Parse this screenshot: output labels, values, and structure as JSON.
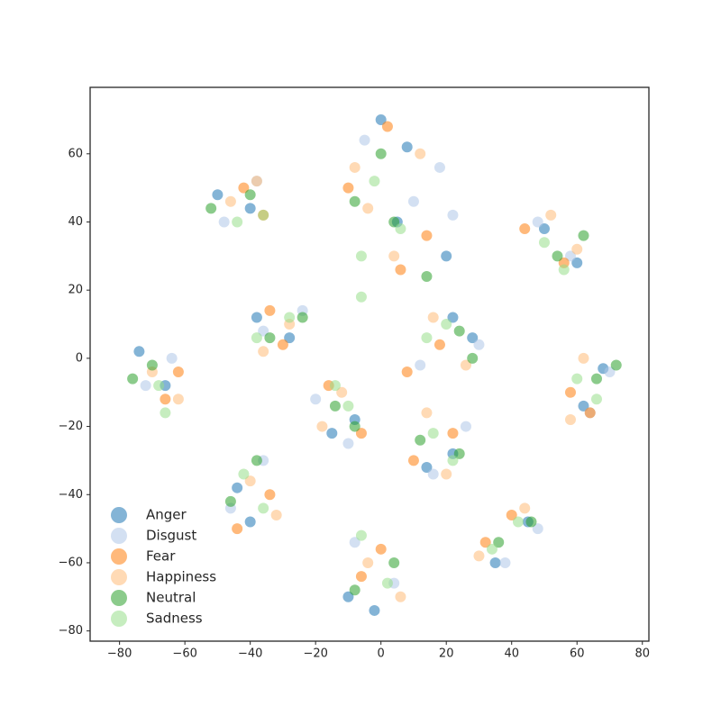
{
  "chart_data": {
    "type": "scatter",
    "xlim": [
      -89,
      82
    ],
    "ylim": [
      -83,
      79.5
    ],
    "xticks": [
      {
        "value": -80,
        "label": "−80"
      },
      {
        "value": -60,
        "label": "−60"
      },
      {
        "value": -40,
        "label": "−40"
      },
      {
        "value": -20,
        "label": "−20"
      },
      0,
      20,
      40,
      60,
      80
    ],
    "yticks": [
      {
        "value": -80,
        "label": "−80"
      },
      {
        "value": -60,
        "label": "−60"
      },
      {
        "value": -40,
        "label": "−40"
      },
      {
        "value": -20,
        "label": "−20"
      },
      0,
      20,
      40,
      60
    ],
    "grid": false,
    "legend": "lower left",
    "series": [
      {
        "name": "Anger",
        "color": "#1f77b4",
        "x": [
          -50,
          -40,
          0,
          8,
          5,
          20,
          60,
          50,
          -38,
          -28,
          28,
          22,
          -74,
          -66,
          68,
          62,
          -15,
          -8,
          22,
          14,
          -40,
          -44,
          45,
          35,
          -2,
          -10
        ],
        "values": [
          48,
          44,
          70,
          62,
          40,
          30,
          28,
          38,
          12,
          6,
          6,
          12,
          2,
          -8,
          -3,
          -14,
          -22,
          -18,
          -28,
          -32,
          -48,
          -38,
          -48,
          -60,
          -74,
          -70
        ]
      },
      {
        "name": "Disgust",
        "color": "#aec7e8",
        "x": [
          -38,
          -48,
          -5,
          18,
          22,
          10,
          48,
          58,
          -36,
          -24,
          12,
          30,
          -72,
          -64,
          64,
          70,
          -20,
          -10,
          26,
          16,
          -46,
          -36,
          38,
          48,
          -8,
          4
        ],
        "values": [
          52,
          40,
          64,
          56,
          42,
          46,
          40,
          30,
          8,
          14,
          -2,
          4,
          -8,
          0,
          -16,
          -4,
          -12,
          -25,
          -20,
          -34,
          -44,
          -30,
          -60,
          -50,
          -54,
          -66
        ]
      },
      {
        "name": "Fear",
        "color": "#ff7f0e",
        "x": [
          -42,
          -36,
          2,
          -10,
          6,
          14,
          44,
          56,
          -30,
          -34,
          18,
          8,
          -66,
          -62,
          58,
          64,
          -16,
          -6,
          10,
          22,
          -44,
          -34,
          32,
          40,
          0,
          -6
        ],
        "values": [
          50,
          42,
          68,
          50,
          26,
          36,
          38,
          28,
          4,
          14,
          4,
          -4,
          -12,
          -4,
          -10,
          -16,
          -8,
          -22,
          -30,
          -22,
          -50,
          -40,
          -54,
          -46,
          -56,
          -64
        ]
      },
      {
        "name": "Happiness",
        "color": "#ffbb78",
        "x": [
          -46,
          -38,
          -8,
          12,
          4,
          -4,
          52,
          60,
          -28,
          -36,
          16,
          26,
          -70,
          -62,
          62,
          58,
          -12,
          -18,
          14,
          20,
          -40,
          -32,
          30,
          44,
          -4,
          6
        ],
        "values": [
          46,
          52,
          56,
          60,
          30,
          44,
          42,
          32,
          10,
          2,
          12,
          -2,
          -4,
          -12,
          0,
          -18,
          -10,
          -20,
          -16,
          -34,
          -36,
          -46,
          -58,
          -44,
          -60,
          -70
        ]
      },
      {
        "name": "Neutral",
        "color": "#2ca02c",
        "x": [
          -52,
          -40,
          0,
          -8,
          4,
          14,
          54,
          62,
          -34,
          -24,
          24,
          28,
          -76,
          -70,
          66,
          72,
          -8,
          -14,
          12,
          24,
          -38,
          -46,
          46,
          36,
          -8,
          4
        ],
        "values": [
          44,
          48,
          60,
          46,
          40,
          24,
          30,
          36,
          6,
          12,
          8,
          0,
          -6,
          -2,
          -6,
          -2,
          -20,
          -14,
          -24,
          -28,
          -30,
          -42,
          -48,
          -54,
          -68,
          -60
        ]
      },
      {
        "name": "Sadness",
        "color": "#98df8a",
        "x": [
          -44,
          -36,
          -2,
          6,
          -6,
          -6,
          50,
          56,
          -28,
          -38,
          14,
          20,
          -68,
          -66,
          60,
          66,
          -10,
          -14,
          16,
          22,
          -42,
          -36,
          34,
          42,
          -6,
          2
        ],
        "values": [
          40,
          42,
          52,
          38,
          30,
          18,
          34,
          26,
          12,
          6,
          6,
          10,
          -8,
          -16,
          -6,
          -12,
          -14,
          -8,
          -22,
          -30,
          -34,
          -44,
          -56,
          -48,
          -52,
          -66
        ]
      }
    ]
  }
}
